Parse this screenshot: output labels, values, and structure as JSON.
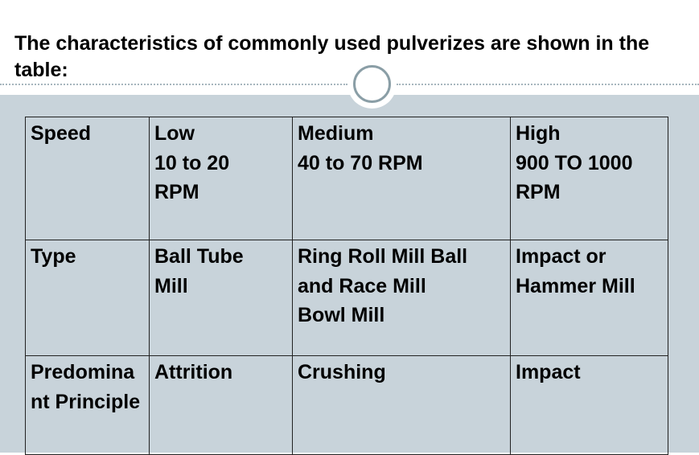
{
  "heading": "The characteristics of commonly used pulverizes are shown in the table:",
  "table": {
    "rows": [
      {
        "label": "Speed",
        "low": "Low\n10 to 20\nRPM",
        "medium": "Medium\n40 to 70 RPM",
        "high": "High\n900 TO 1000\nRPM"
      },
      {
        "label": "Type",
        "low": "Ball Tube\nMill",
        "medium": "Ring Roll Mill Ball\nand Race Mill\nBowl Mill",
        "high": "Impact or\nHammer Mill"
      },
      {
        "label": "Predominant Principle",
        "low": "Attrition",
        "medium": "Crushing",
        "high": "Impact"
      }
    ]
  },
  "colors": {
    "panel_background": "#c8d3da",
    "ring_border": "#8a9ea6",
    "dotted_line": "#a6b6bd"
  },
  "icons": {
    "ring": "circle-ring-decoration"
  }
}
